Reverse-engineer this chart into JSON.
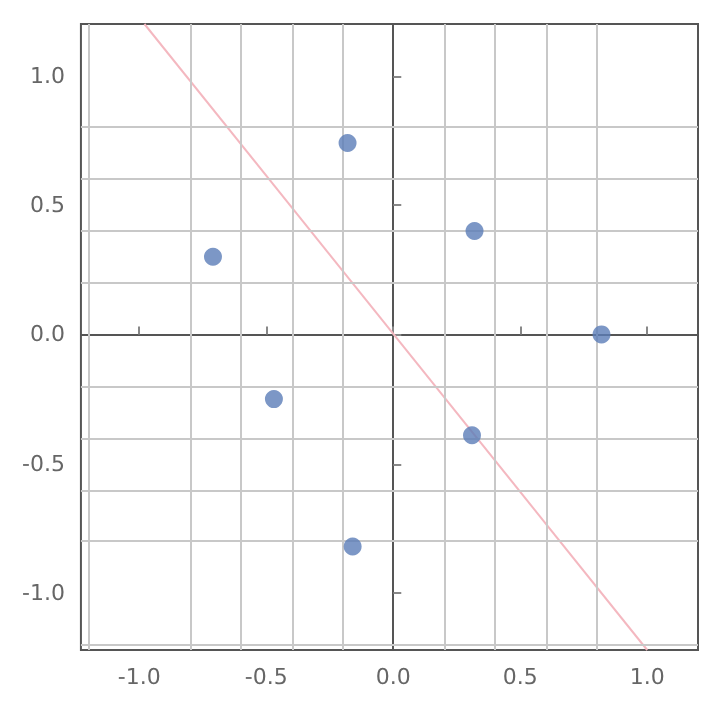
{
  "chart_data": {
    "type": "scatter",
    "xlim": [
      -1.23,
      1.2
    ],
    "ylim": [
      -1.22,
      1.2
    ],
    "xticks": [
      {
        "value": -1.2,
        "label": null
      },
      {
        "value": -1.0,
        "label": "-1.0"
      },
      {
        "value": -0.8,
        "label": null
      },
      {
        "value": -0.6,
        "label": null
      },
      {
        "value": -0.5,
        "label": "-0.5"
      },
      {
        "value": -0.4,
        "label": null
      },
      {
        "value": -0.2,
        "label": null
      },
      {
        "value": 0,
        "label": "0.0"
      },
      {
        "value": 0.2,
        "label": null
      },
      {
        "value": 0.4,
        "label": null
      },
      {
        "value": 0.5,
        "label": "0.5"
      },
      {
        "value": 0.6,
        "label": null
      },
      {
        "value": 0.8,
        "label": null
      },
      {
        "value": 1.0,
        "label": "1.0"
      }
    ],
    "yticks": [
      {
        "value": -1.2,
        "label": null
      },
      {
        "value": -1.0,
        "label": "-1.0"
      },
      {
        "value": -0.8,
        "label": null
      },
      {
        "value": -0.6,
        "label": null
      },
      {
        "value": -0.5,
        "label": "-0.5"
      },
      {
        "value": -0.4,
        "label": null
      },
      {
        "value": -0.2,
        "label": null
      },
      {
        "value": 0,
        "label": "0.0"
      },
      {
        "value": 0.2,
        "label": null
      },
      {
        "value": 0.4,
        "label": null
      },
      {
        "value": 0.5,
        "label": "0.5"
      },
      {
        "value": 0.6,
        "label": null
      },
      {
        "value": 0.8,
        "label": null
      },
      {
        "value": 1.0,
        "label": "1.0"
      }
    ],
    "grid": true,
    "marker": "circle",
    "series": [
      {
        "color": "#5b7db8",
        "x": [
          -0.18,
          -0.71,
          0.32,
          0.82,
          -0.47,
          0.31,
          -0.16
        ],
        "values": [
          0.74,
          0.3,
          0.4,
          0.0,
          -0.25,
          -0.39,
          -0.82
        ]
      },
      {
        "type": "line",
        "marker": "none",
        "color": "#f4b8c0",
        "x": [
          -0.98,
          1.0
        ],
        "values": [
          1.2,
          -1.22
        ]
      }
    ]
  }
}
